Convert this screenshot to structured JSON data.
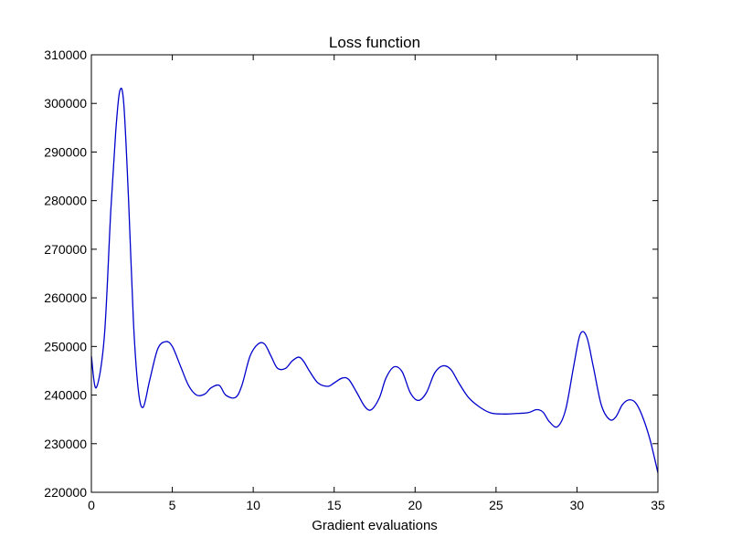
{
  "chart_data": {
    "type": "line",
    "title": "Loss function",
    "xlabel": "Gradient evaluations",
    "ylabel": "",
    "xlim": [
      0,
      35
    ],
    "ylim": [
      220000,
      310000
    ],
    "xticks": [
      0,
      5,
      10,
      15,
      20,
      25,
      30,
      35
    ],
    "yticks": [
      220000,
      230000,
      240000,
      250000,
      260000,
      270000,
      280000,
      290000,
      300000,
      310000
    ],
    "grid": false,
    "series": [
      {
        "name": "",
        "color": "#0000cc",
        "x": [
          0,
          0.3,
          0.8,
          1.2,
          1.5,
          1.75,
          2.0,
          2.3,
          2.6,
          2.9,
          3.2,
          3.6,
          4.1,
          4.6,
          5.0,
          5.5,
          6.0,
          6.5,
          7.0,
          7.4,
          7.9,
          8.3,
          8.9,
          9.3,
          9.8,
          10.3,
          10.7,
          11.1,
          11.5,
          12.0,
          12.4,
          12.8,
          13.1,
          13.5,
          14.0,
          14.6,
          15.0,
          15.5,
          15.9,
          16.4,
          16.9,
          17.3,
          17.8,
          18.2,
          18.7,
          19.2,
          19.7,
          20.2,
          20.7,
          21.2,
          21.7,
          22.2,
          22.7,
          23.3,
          24.0,
          24.7,
          25.5,
          26.2,
          27.0,
          27.5,
          27.9,
          28.3,
          28.8,
          29.3,
          29.8,
          30.2,
          30.6,
          31.0,
          31.5,
          32.0,
          32.4,
          32.8,
          33.2,
          33.6,
          34.0,
          34.5,
          35.0
        ],
        "y": [
          248000,
          241500,
          252000,
          278000,
          294000,
          302500,
          300000,
          280000,
          255000,
          241000,
          237500,
          243000,
          249500,
          251000,
          250000,
          246000,
          242000,
          240000,
          240200,
          241500,
          242000,
          240000,
          239500,
          242000,
          248000,
          250500,
          250500,
          248000,
          245500,
          245500,
          247000,
          247800,
          247000,
          244800,
          242500,
          241800,
          242500,
          243500,
          243200,
          240500,
          237600,
          237000,
          239500,
          243500,
          245800,
          244800,
          240500,
          238900,
          240500,
          244500,
          246000,
          245300,
          242500,
          239500,
          237500,
          236300,
          236100,
          236200,
          236400,
          237000,
          236500,
          234500,
          233500,
          237000,
          246000,
          252500,
          252000,
          246000,
          238000,
          235000,
          235500,
          238000,
          239000,
          238500,
          236000,
          231000,
          224000
        ]
      }
    ]
  }
}
